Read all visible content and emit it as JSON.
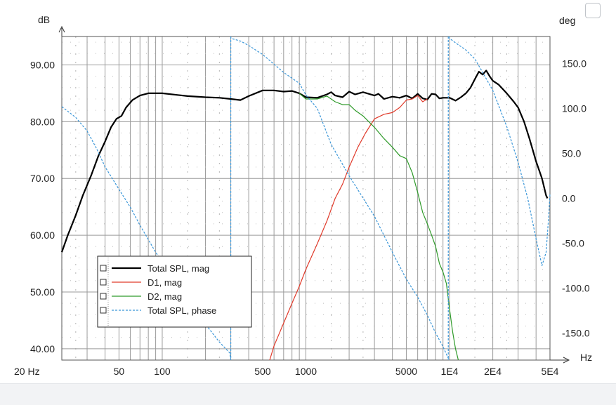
{
  "chart_data": {
    "type": "line",
    "x_scale": "log",
    "xlim": [
      20,
      50000
    ],
    "ylim_left": [
      38,
      95
    ],
    "ylim_right": [
      -180,
      180
    ],
    "grid": true,
    "left_axis_unit": "dB",
    "right_axis_unit": "deg",
    "x_axis_unit": "Hz",
    "x_ticks": [
      {
        "value": 20,
        "label": "20 Hz"
      },
      {
        "value": 50,
        "label": "50"
      },
      {
        "value": 100,
        "label": "100"
      },
      {
        "value": 500,
        "label": "500"
      },
      {
        "value": 1000,
        "label": "1000"
      },
      {
        "value": 5000,
        "label": "5000"
      },
      {
        "value": 10000,
        "label": "1E4"
      },
      {
        "value": 20000,
        "label": "2E4"
      },
      {
        "value": 50000,
        "label": "5E4"
      }
    ],
    "y_ticks_left": [
      {
        "value": 40,
        "label": "40.00"
      },
      {
        "value": 50,
        "label": "50.00"
      },
      {
        "value": 60,
        "label": "60.00"
      },
      {
        "value": 70,
        "label": "70.00"
      },
      {
        "value": 80,
        "label": "80.00"
      },
      {
        "value": 90,
        "label": "90.00"
      }
    ],
    "y_ticks_right": [
      {
        "value": 150,
        "label": "150.0"
      },
      {
        "value": 100,
        "label": "100.0"
      },
      {
        "value": 50,
        "label": "50.0"
      },
      {
        "value": 0,
        "label": "0.0"
      },
      {
        "value": -50,
        "label": "-50.0"
      },
      {
        "value": -100,
        "label": "-100.0"
      },
      {
        "value": -150,
        "label": "-150.0"
      }
    ],
    "legend_position": "bottom-left",
    "series": [
      {
        "name": "Total SPL, mag",
        "axis": "left",
        "color": "#000000",
        "style": "solid-thick",
        "points": [
          [
            20,
            57
          ],
          [
            22,
            60
          ],
          [
            25,
            63.5
          ],
          [
            28,
            67
          ],
          [
            32,
            70.5
          ],
          [
            36,
            74
          ],
          [
            40,
            76.5
          ],
          [
            44,
            79
          ],
          [
            48,
            80.5
          ],
          [
            52,
            81
          ],
          [
            56,
            82.5
          ],
          [
            62,
            83.8
          ],
          [
            70,
            84.6
          ],
          [
            80,
            85
          ],
          [
            100,
            85
          ],
          [
            150,
            84.5
          ],
          [
            200,
            84.3
          ],
          [
            250,
            84.2
          ],
          [
            300,
            84
          ],
          [
            350,
            83.8
          ],
          [
            400,
            84.5
          ],
          [
            500,
            85.5
          ],
          [
            600,
            85.5
          ],
          [
            700,
            85.3
          ],
          [
            800,
            85.4
          ],
          [
            900,
            85
          ],
          [
            1000,
            84.3
          ],
          [
            1200,
            84.2
          ],
          [
            1400,
            84.8
          ],
          [
            1500,
            85.2
          ],
          [
            1600,
            84.6
          ],
          [
            1800,
            84.3
          ],
          [
            2000,
            85.3
          ],
          [
            2200,
            84.8
          ],
          [
            2500,
            85.2
          ],
          [
            3000,
            84.6
          ],
          [
            3200,
            84.9
          ],
          [
            3500,
            84
          ],
          [
            4000,
            84.4
          ],
          [
            4500,
            84.2
          ],
          [
            5000,
            84.6
          ],
          [
            5500,
            84.1
          ],
          [
            6000,
            84.9
          ],
          [
            6500,
            84.1
          ],
          [
            7000,
            83.9
          ],
          [
            7500,
            84.9
          ],
          [
            8000,
            84.8
          ],
          [
            8500,
            84.1
          ],
          [
            9000,
            84.2
          ],
          [
            10000,
            84.2
          ],
          [
            11000,
            83.7
          ],
          [
            12000,
            84.3
          ],
          [
            13000,
            85
          ],
          [
            14000,
            86
          ],
          [
            15000,
            87.5
          ],
          [
            16000,
            88.8
          ],
          [
            17000,
            88.3
          ],
          [
            18000,
            89
          ],
          [
            19000,
            88
          ],
          [
            20000,
            87.2
          ],
          [
            22000,
            86.5
          ],
          [
            25000,
            85
          ],
          [
            28000,
            83.5
          ],
          [
            30000,
            82.5
          ],
          [
            33000,
            80
          ],
          [
            36000,
            77
          ],
          [
            40000,
            73
          ],
          [
            44000,
            70
          ],
          [
            47000,
            67
          ],
          [
            48000,
            66.5
          ]
        ]
      },
      {
        "name": "D1, mag",
        "axis": "left",
        "color": "#e03a2a",
        "style": "solid",
        "points": [
          [
            560,
            38
          ],
          [
            600,
            40.5
          ],
          [
            700,
            44.5
          ],
          [
            800,
            48
          ],
          [
            900,
            51
          ],
          [
            1000,
            54
          ],
          [
            1200,
            58.5
          ],
          [
            1400,
            62.5
          ],
          [
            1600,
            66.5
          ],
          [
            1800,
            69
          ],
          [
            2000,
            72
          ],
          [
            2300,
            75.5
          ],
          [
            2600,
            78
          ],
          [
            3000,
            80.5
          ],
          [
            3500,
            81.3
          ],
          [
            4000,
            81.6
          ],
          [
            4500,
            82.5
          ],
          [
            5000,
            83.8
          ],
          [
            5500,
            84
          ],
          [
            6000,
            84.6
          ],
          [
            6500,
            83.5
          ],
          [
            7000,
            84
          ]
        ]
      },
      {
        "name": "D2, mag",
        "axis": "left",
        "color": "#2f9a2a",
        "style": "solid",
        "points": [
          [
            900,
            85
          ],
          [
            1000,
            84
          ],
          [
            1200,
            84
          ],
          [
            1400,
            84.5
          ],
          [
            1600,
            83.5
          ],
          [
            1800,
            83
          ],
          [
            2000,
            83
          ],
          [
            2200,
            82
          ],
          [
            2500,
            81
          ],
          [
            3000,
            79
          ],
          [
            3500,
            77
          ],
          [
            4000,
            75.5
          ],
          [
            4500,
            74
          ],
          [
            5000,
            73.5
          ],
          [
            5500,
            71
          ],
          [
            6000,
            67.5
          ],
          [
            6500,
            64
          ],
          [
            7000,
            62
          ],
          [
            7500,
            60
          ],
          [
            8000,
            58
          ],
          [
            8500,
            55
          ],
          [
            9000,
            53.5
          ],
          [
            9500,
            51.5
          ],
          [
            10000,
            47
          ],
          [
            10500,
            43
          ],
          [
            11000,
            40
          ],
          [
            11500,
            38
          ]
        ]
      },
      {
        "name": "Total SPL, phase",
        "axis": "right",
        "color": "#3a96d8",
        "style": "dashed",
        "wrap_at_x": [
          300,
          9800
        ],
        "points": [
          [
            20,
            102
          ],
          [
            25,
            90
          ],
          [
            30,
            75
          ],
          [
            35,
            55
          ],
          [
            40,
            35
          ],
          [
            50,
            10
          ],
          [
            60,
            -10
          ],
          [
            70,
            -30
          ],
          [
            90,
            -60
          ],
          [
            120,
            -90
          ],
          [
            150,
            -115
          ],
          [
            200,
            -140
          ],
          [
            250,
            -160
          ],
          [
            295,
            -172
          ],
          [
            300,
            178
          ],
          [
            350,
            175
          ],
          [
            400,
            170
          ],
          [
            500,
            160
          ],
          [
            700,
            140
          ],
          [
            900,
            128
          ],
          [
            1000,
            115
          ],
          [
            1200,
            100
          ],
          [
            1500,
            60
          ],
          [
            2000,
            25
          ],
          [
            3000,
            -20
          ],
          [
            4000,
            -60
          ],
          [
            5000,
            -90
          ],
          [
            6000,
            -110
          ],
          [
            7000,
            -130
          ],
          [
            8000,
            -150
          ],
          [
            9000,
            -165
          ],
          [
            9800,
            -178
          ],
          [
            10000,
            178
          ],
          [
            11000,
            173
          ],
          [
            13000,
            165
          ],
          [
            15000,
            155
          ],
          [
            17000,
            140
          ],
          [
            20000,
            120
          ],
          [
            25000,
            80
          ],
          [
            30000,
            40
          ],
          [
            35000,
            0
          ],
          [
            40000,
            -45
          ],
          [
            44000,
            -75
          ],
          [
            47000,
            -60
          ],
          [
            49000,
            -20
          ],
          [
            50000,
            5
          ]
        ]
      }
    ]
  }
}
